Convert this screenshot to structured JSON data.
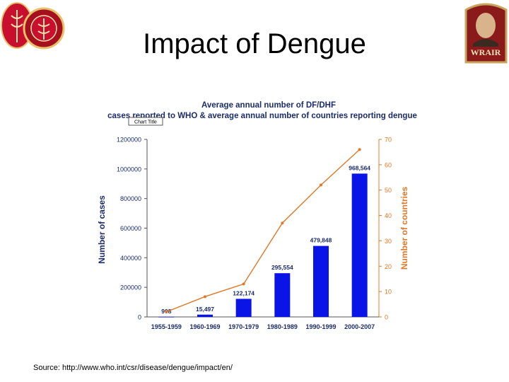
{
  "slide": {
    "title": "Impact of Dengue",
    "source": "Source: http://www.who.int/csr/disease/dengue/impact/en/",
    "logo_right_text": "WRAIR"
  },
  "colors": {
    "bars": "#0a14e6",
    "line": "#e07828",
    "right_axis": "#e07828"
  },
  "chart_data": {
    "type": "bar",
    "title": "Average annual number of DF/DHF",
    "subtitle": "cases reported to WHO & average annual number of countries reporting dengue",
    "tag": "Chart Title",
    "categories": [
      "1955-1959",
      "1960-1969",
      "1970-1979",
      "1980-1989",
      "1990-1999",
      "2000-2007"
    ],
    "bar_labels": [
      "908",
      "15,497",
      "122,174",
      "295,554",
      "479,848",
      "968,564"
    ],
    "series": [
      {
        "name": "",
        "type": "bar",
        "axis": "left",
        "values": [
          908,
          15497,
          122174,
          295554,
          479848,
          968564
        ]
      },
      {
        "name": "",
        "type": "line",
        "axis": "right",
        "values": [
          2,
          8,
          13,
          37,
          52,
          66
        ]
      }
    ],
    "ylabel": "Number of cases",
    "ylabel_right": "Number of countries",
    "ylim": [
      0,
      1200000
    ],
    "ylim_right": [
      0,
      70
    ],
    "yticks": [
      "0",
      "200000",
      "400000",
      "600000",
      "800000",
      "1000000",
      "1200000"
    ],
    "yticks_right": [
      "0",
      "10",
      "20",
      "30",
      "40",
      "50",
      "60",
      "70"
    ],
    "grid": false
  }
}
